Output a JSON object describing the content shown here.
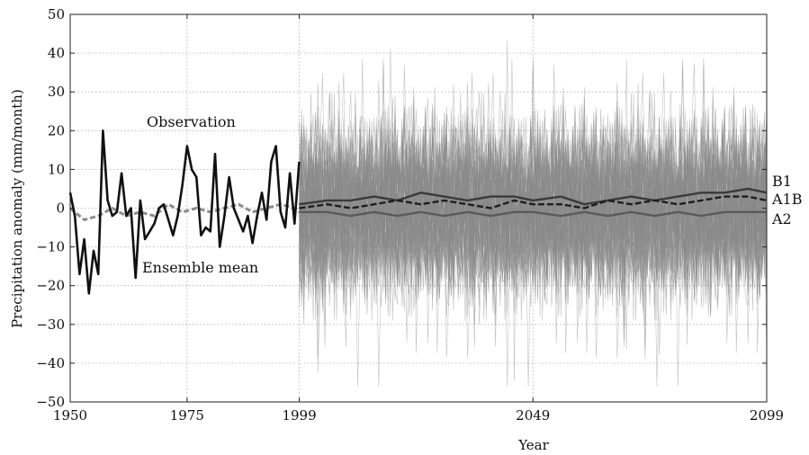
{
  "chart_data": {
    "type": "line",
    "xlabel": "Year",
    "ylabel": "Precipitation anomaly (mm/month)",
    "xlim": [
      1950,
      2099
    ],
    "ylim": [
      -50,
      50
    ],
    "grid": true,
    "x_ticks": [
      1950,
      1975,
      1999,
      2049,
      2099
    ],
    "x_tick_labels": [
      "1950",
      "1975",
      "1999",
      "2049",
      "2099"
    ],
    "y_ticks": [
      -50,
      -40,
      -30,
      -20,
      -10,
      0,
      10,
      20,
      30,
      40,
      50
    ],
    "y_tick_labels": [
      "−50",
      "−40",
      "−30",
      "−20",
      "−10",
      "0",
      "10",
      "20",
      "30",
      "40",
      "50"
    ],
    "annotations": {
      "observation": "Observation",
      "ensemble_mean": "Ensemble mean",
      "b1": "B1",
      "a1b": "A1B",
      "a2": "A2"
    },
    "colors": {
      "observation": "#111111",
      "ensemble_mean": "#8c8c8c",
      "projection_members": "#8a8a8a",
      "b1": "#3a3a3a",
      "a1b": "#1e1e1e",
      "a2": "#5a5a5a"
    },
    "series": [
      {
        "name": "Observation",
        "x": [
          1950,
          1951,
          1952,
          1953,
          1954,
          1955,
          1956,
          1957,
          1958,
          1959,
          1960,
          1961,
          1962,
          1963,
          1964,
          1965,
          1966,
          1967,
          1968,
          1969,
          1970,
          1971,
          1972,
          1973,
          1974,
          1975,
          1976,
          1977,
          1978,
          1979,
          1980,
          1981,
          1982,
          1983,
          1984,
          1985,
          1986,
          1987,
          1988,
          1989,
          1990,
          1991,
          1992,
          1993,
          1994,
          1995,
          1996,
          1997,
          1998,
          1999
        ],
        "values": [
          4,
          -2,
          -17,
          -8,
          -22,
          -11,
          -17,
          20,
          2,
          -2,
          -1,
          9,
          -2,
          0,
          -18,
          2,
          -8,
          -6,
          -4,
          0,
          1,
          -3,
          -7,
          -2,
          6,
          16,
          10,
          8,
          -7,
          -5,
          -6,
          14,
          -10,
          -2,
          8,
          0,
          -3,
          -6,
          -2,
          -9,
          -2,
          4,
          -3,
          12,
          16,
          -1,
          -5,
          9,
          -4,
          12
        ]
      },
      {
        "name": "Ensemble mean",
        "x": [
          1950,
          1953,
          1956,
          1959,
          1962,
          1965,
          1968,
          1971,
          1974,
          1977,
          1980,
          1983,
          1986,
          1989,
          1992,
          1995,
          1998,
          1999
        ],
        "values": [
          0,
          -3,
          -2,
          0,
          -2,
          -1,
          -2,
          1,
          -1,
          0,
          -1,
          0,
          1,
          -1,
          0,
          1,
          0,
          -1
        ]
      },
      {
        "name": "B1",
        "x": [
          1999,
          2005,
          2010,
          2015,
          2020,
          2025,
          2030,
          2035,
          2040,
          2045,
          2049,
          2055,
          2060,
          2065,
          2070,
          2075,
          2080,
          2085,
          2090,
          2095,
          2099
        ],
        "values": [
          1,
          2,
          2,
          3,
          2,
          4,
          3,
          2,
          3,
          3,
          2,
          3,
          1,
          2,
          3,
          2,
          3,
          4,
          4,
          5,
          4
        ]
      },
      {
        "name": "A1B",
        "x": [
          1999,
          2005,
          2010,
          2015,
          2020,
          2025,
          2030,
          2035,
          2040,
          2045,
          2049,
          2055,
          2060,
          2065,
          2070,
          2075,
          2080,
          2085,
          2090,
          2095,
          2099
        ],
        "values": [
          0,
          1,
          0,
          1,
          2,
          1,
          2,
          1,
          0,
          2,
          1,
          1,
          0,
          2,
          1,
          2,
          1,
          2,
          3,
          3,
          2
        ]
      },
      {
        "name": "A2",
        "x": [
          1999,
          2005,
          2010,
          2015,
          2020,
          2025,
          2030,
          2035,
          2040,
          2045,
          2049,
          2055,
          2060,
          2065,
          2070,
          2075,
          2080,
          2085,
          2090,
          2095,
          2099
        ],
        "values": [
          -1,
          -1,
          -2,
          -1,
          -2,
          -1,
          -2,
          -1,
          -2,
          -1,
          -1,
          -2,
          -1,
          -2,
          -1,
          -2,
          -1,
          -2,
          -1,
          -1,
          -1
        ]
      }
    ]
  }
}
